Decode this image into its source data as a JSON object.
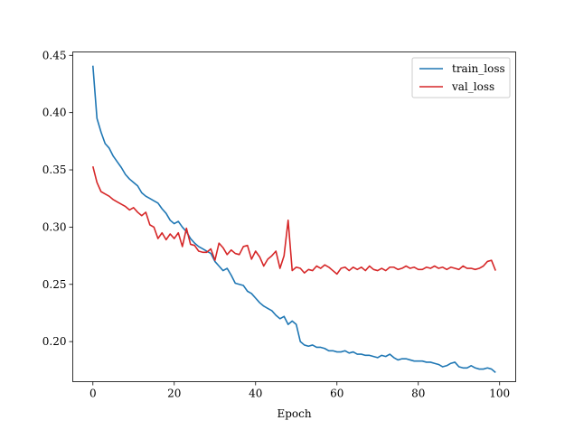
{
  "chart_data": {
    "type": "line",
    "title": "",
    "xlabel": "Epoch",
    "ylabel": "",
    "xlim": [
      -4.95,
      103.95
    ],
    "ylim": [
      0.165,
      0.453
    ],
    "xticks": [
      0,
      20,
      40,
      60,
      80,
      100
    ],
    "yticks": [
      0.2,
      0.25,
      0.3,
      0.35,
      0.4,
      0.45
    ],
    "xtick_labels": [
      "0",
      "20",
      "40",
      "60",
      "80",
      "100"
    ],
    "ytick_labels": [
      "0.20",
      "0.25",
      "0.30",
      "0.35",
      "0.40",
      "0.45"
    ],
    "grid": false,
    "legend_position": "top-right",
    "series": [
      {
        "name": "train_loss",
        "color": "#1f77b4",
        "values": [
          0.441,
          0.395,
          0.383,
          0.373,
          0.369,
          0.362,
          0.357,
          0.352,
          0.346,
          0.342,
          0.339,
          0.336,
          0.33,
          0.327,
          0.325,
          0.323,
          0.321,
          0.316,
          0.312,
          0.306,
          0.303,
          0.305,
          0.3,
          0.296,
          0.29,
          0.286,
          0.283,
          0.281,
          0.279,
          0.277,
          0.27,
          0.266,
          0.262,
          0.264,
          0.258,
          0.251,
          0.25,
          0.249,
          0.244,
          0.242,
          0.238,
          0.234,
          0.231,
          0.229,
          0.227,
          0.223,
          0.22,
          0.222,
          0.215,
          0.218,
          0.215,
          0.2,
          0.197,
          0.196,
          0.197,
          0.195,
          0.195,
          0.194,
          0.192,
          0.192,
          0.191,
          0.191,
          0.192,
          0.19,
          0.191,
          0.189,
          0.189,
          0.188,
          0.188,
          0.187,
          0.186,
          0.188,
          0.187,
          0.189,
          0.186,
          0.184,
          0.185,
          0.185,
          0.184,
          0.183,
          0.183,
          0.183,
          0.182,
          0.182,
          0.181,
          0.18,
          0.178,
          0.179,
          0.181,
          0.182,
          0.178,
          0.177,
          0.177,
          0.179,
          0.177,
          0.176,
          0.176,
          0.177,
          0.176,
          0.173
        ]
      },
      {
        "name": "val_loss",
        "color": "#d62728",
        "values": [
          0.353,
          0.339,
          0.331,
          0.329,
          0.327,
          0.324,
          0.322,
          0.32,
          0.318,
          0.315,
          0.317,
          0.313,
          0.31,
          0.313,
          0.302,
          0.3,
          0.29,
          0.295,
          0.289,
          0.294,
          0.29,
          0.295,
          0.283,
          0.299,
          0.285,
          0.284,
          0.279,
          0.278,
          0.278,
          0.281,
          0.271,
          0.286,
          0.282,
          0.276,
          0.28,
          0.277,
          0.276,
          0.283,
          0.284,
          0.272,
          0.279,
          0.274,
          0.266,
          0.272,
          0.275,
          0.279,
          0.264,
          0.275,
          0.306,
          0.262,
          0.265,
          0.264,
          0.26,
          0.263,
          0.262,
          0.266,
          0.264,
          0.267,
          0.265,
          0.262,
          0.259,
          0.264,
          0.265,
          0.262,
          0.265,
          0.263,
          0.265,
          0.262,
          0.266,
          0.263,
          0.262,
          0.264,
          0.262,
          0.265,
          0.265,
          0.263,
          0.264,
          0.266,
          0.264,
          0.265,
          0.263,
          0.263,
          0.265,
          0.264,
          0.266,
          0.264,
          0.265,
          0.263,
          0.265,
          0.264,
          0.263,
          0.266,
          0.264,
          0.264,
          0.263,
          0.264,
          0.266,
          0.27,
          0.271,
          0.262
        ]
      }
    ]
  }
}
